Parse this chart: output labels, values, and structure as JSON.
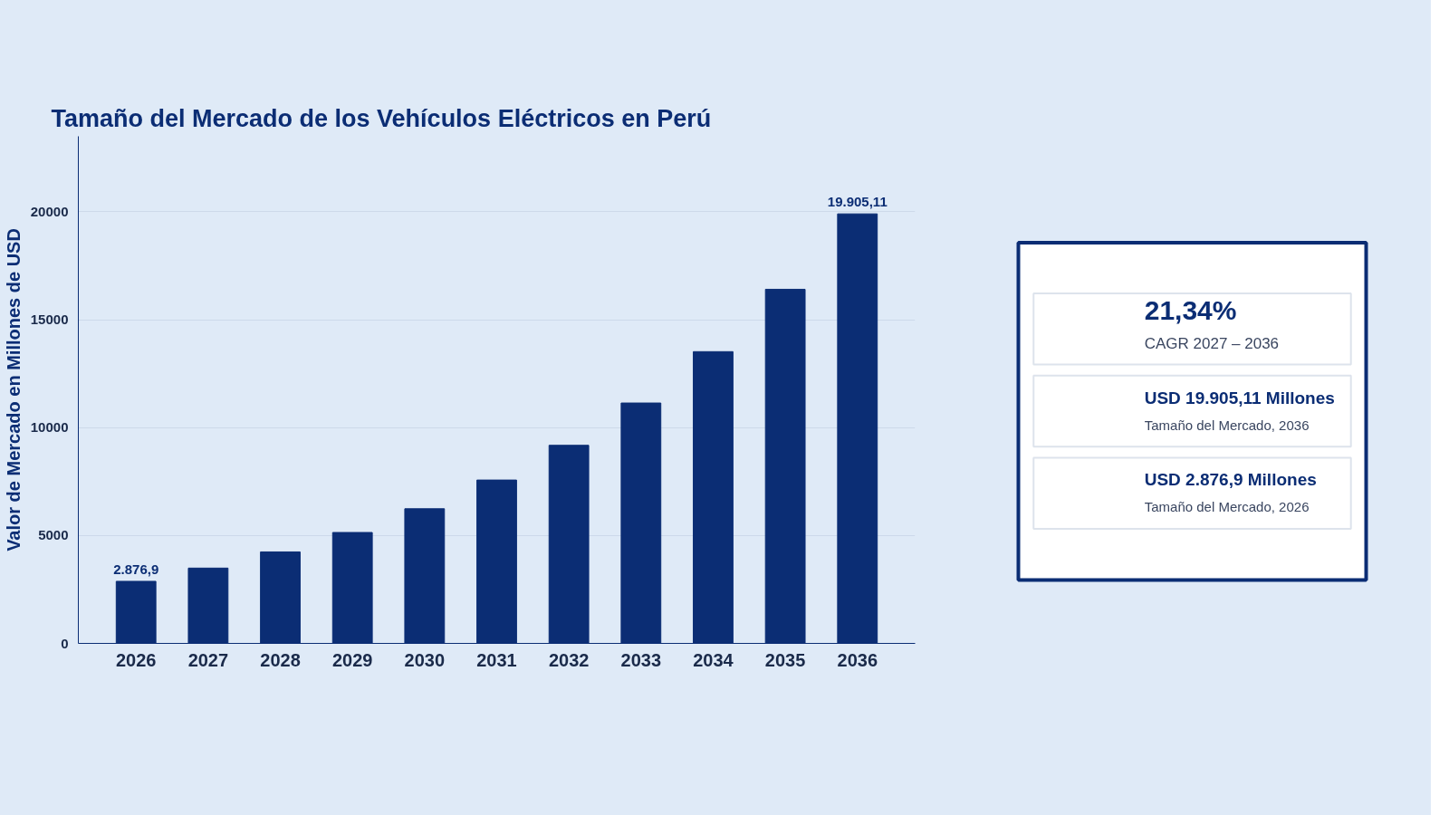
{
  "chart_data": [
    {
      "type": "bar",
      "title": "Tamaño del Mercado de los Vehículos Eléctricos en Perú",
      "ylabel": "Valor de Mercado en Millones de USD",
      "categories": [
        "2026",
        "2027",
        "2028",
        "2029",
        "2030",
        "2031",
        "2032",
        "2033",
        "2034",
        "2035",
        "2036"
      ],
      "values": [
        2876.9,
        3490,
        4240,
        5140,
        6240,
        7570,
        9180,
        11140,
        13520,
        16410,
        19905.11
      ],
      "value_labels": [
        "2.876,9",
        null,
        null,
        null,
        null,
        null,
        null,
        null,
        null,
        null,
        "19.905,11"
      ],
      "color": "#0b2d74",
      "ylim": [
        0,
        23500
      ],
      "yticks": [
        0,
        5000,
        10000,
        15000,
        20000
      ],
      "grid": "y"
    },
    {
      "type": "other",
      "annotations": [
        "21,34%",
        "CAGR 2027 – 2036",
        "USD 19.905,11 Millones",
        "Tamaño del Mercado, 2036",
        "USD 2.876,9 Millones",
        "Tamaño del Mercado, 2026"
      ]
    }
  ]
}
